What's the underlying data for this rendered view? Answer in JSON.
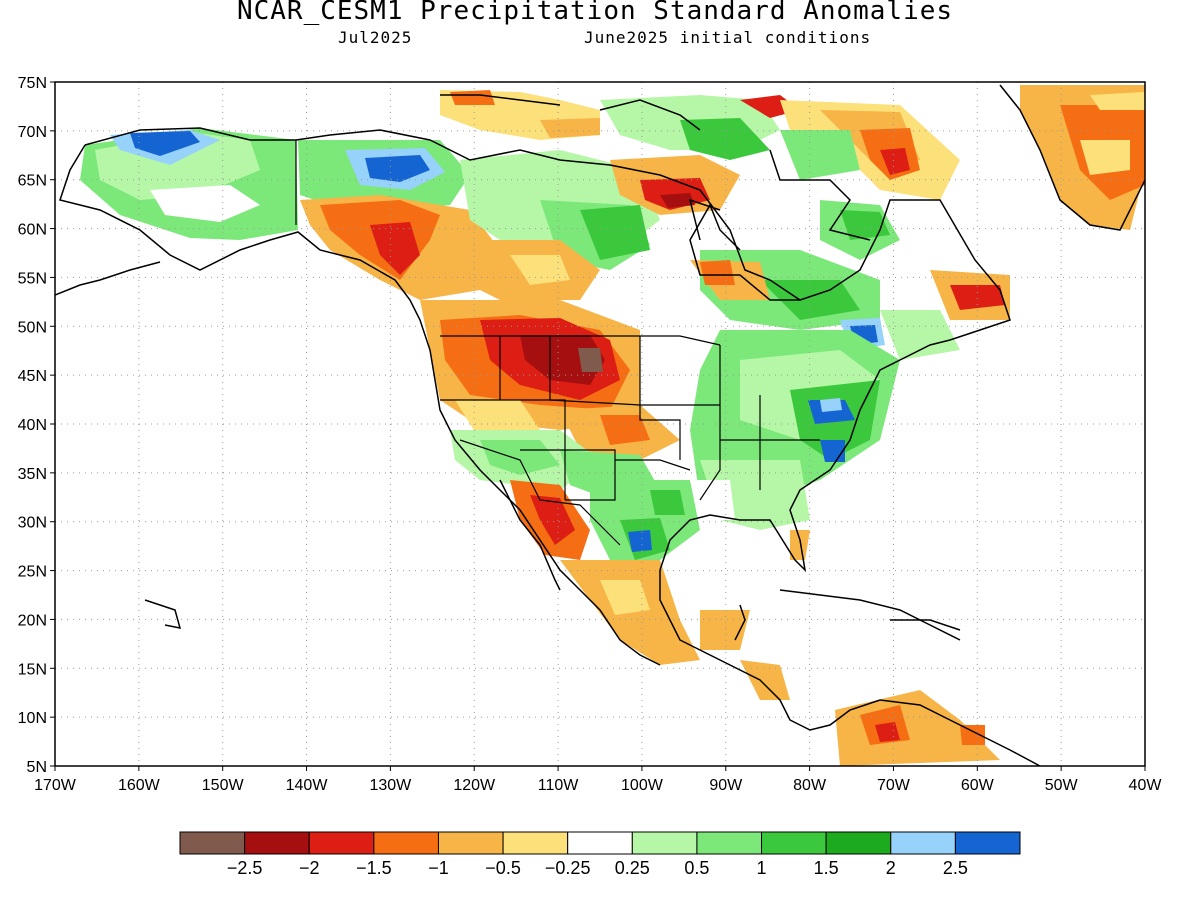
{
  "header": {
    "title": "NCAR_CESM1 Precipitation Standard Anomalies",
    "month": "Jul2025",
    "init": "June2025 initial conditions"
  },
  "axes": {
    "lat_labels": [
      "75N",
      "70N",
      "65N",
      "60N",
      "55N",
      "50N",
      "45N",
      "40N",
      "35N",
      "30N",
      "25N",
      "20N",
      "15N",
      "10N",
      "5N"
    ],
    "lon_labels": [
      "170W",
      "160W",
      "150W",
      "140W",
      "130W",
      "120W",
      "110W",
      "100W",
      "90W",
      "80W",
      "70W",
      "60W",
      "50W",
      "40W"
    ],
    "lat_range": [
      5,
      75
    ],
    "lon_range": [
      -170,
      -40
    ],
    "grid": "dotted"
  },
  "colorbar": {
    "colors": [
      "#7f5a4d",
      "#a50f0f",
      "#dc1e14",
      "#f56e14",
      "#f7b447",
      "#fce07a",
      "#ffffff",
      "#b5f7a6",
      "#7ce87a",
      "#3cc83c",
      "#1eaa1e",
      "#96d2fa",
      "#1464d2"
    ],
    "labels": [
      "−2.5",
      "−2",
      "−1.5",
      "−1",
      "−0.5",
      "−0.25",
      "0.25",
      "0.5",
      "1",
      "1.5",
      "2",
      "2.5"
    ]
  }
}
